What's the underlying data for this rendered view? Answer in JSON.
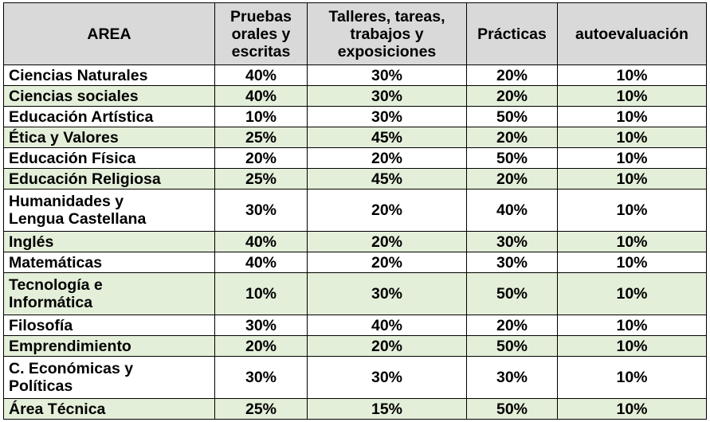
{
  "headers": {
    "area": "AREA",
    "pruebas": [
      "Pruebas",
      "orales y",
      "escritas"
    ],
    "talleres": [
      "Talleres, tareas,",
      "trabajos y",
      "exposiciones"
    ],
    "practicas": "Prácticas",
    "autoevaluacion": "autoevaluación"
  },
  "rows": [
    {
      "area": [
        "Ciencias Naturales"
      ],
      "pruebas": "40%",
      "talleres": "30%",
      "practicas": "20%",
      "autoevaluacion": "10%"
    },
    {
      "area": [
        "Ciencias  sociales"
      ],
      "pruebas": "40%",
      "talleres": "30%",
      "practicas": "20%",
      "autoevaluacion": "10%"
    },
    {
      "area": [
        "Educación Artística"
      ],
      "pruebas": "10%",
      "talleres": "30%",
      "practicas": "50%",
      "autoevaluacion": "10%"
    },
    {
      "area": [
        "Ética y Valores"
      ],
      "pruebas": "25%",
      "talleres": "45%",
      "practicas": "20%",
      "autoevaluacion": "10%"
    },
    {
      "area": [
        "Educación  Física"
      ],
      "pruebas": "20%",
      "talleres": "20%",
      "practicas": "50%",
      "autoevaluacion": "10%"
    },
    {
      "area": [
        "Educación  Religiosa"
      ],
      "pruebas": "25%",
      "talleres": "45%",
      "practicas": "20%",
      "autoevaluacion": "10%"
    },
    {
      "area": [
        "Humanidades y",
        "Lengua Castellana"
      ],
      "pruebas": "30%",
      "talleres": "20%",
      "practicas": "40%",
      "autoevaluacion": "10%"
    },
    {
      "area": [
        "Inglés"
      ],
      "pruebas": "40%",
      "talleres": "20%",
      "practicas": "30%",
      "autoevaluacion": "10%"
    },
    {
      "area": [
        "Matemáticas"
      ],
      "pruebas": "40%",
      "talleres": "20%",
      "practicas": "30%",
      "autoevaluacion": "10%"
    },
    {
      "area": [
        "Tecnología e",
        "Informática"
      ],
      "pruebas": "10%",
      "talleres": "30%",
      "practicas": "50%",
      "autoevaluacion": "10%"
    },
    {
      "area": [
        "Filosofía"
      ],
      "pruebas": "30%",
      "talleres": "40%",
      "practicas": "20%",
      "autoevaluacion": "10%"
    },
    {
      "area": [
        "Emprendimiento"
      ],
      "pruebas": "20%",
      "talleres": "20%",
      "practicas": "50%",
      "autoevaluacion": "10%"
    },
    {
      "area": [
        "C. Económicas y",
        "Políticas"
      ],
      "pruebas": "30%",
      "talleres": "30%",
      "practicas": "30%",
      "autoevaluacion": "10%"
    },
    {
      "area": [
        "Área Técnica"
      ],
      "pruebas": "25%",
      "talleres": "15%",
      "practicas": "50%",
      "autoevaluacion": "10%"
    }
  ],
  "colors": {
    "header_bg": "#d9d9d9",
    "alt_row_bg": "#e4efd9",
    "border": "#000000"
  }
}
